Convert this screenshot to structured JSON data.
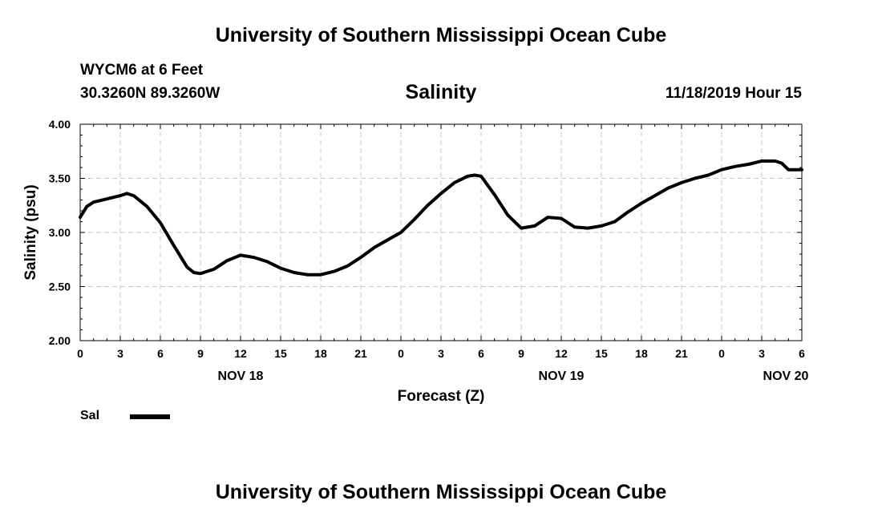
{
  "header": {
    "title_top": "University of Southern Mississippi Ocean Cube",
    "station": "WYCM6 at 6 Feet",
    "coords": "30.3260N 89.3260W",
    "parameter": "Salinity",
    "datetime": "11/18/2019 Hour 15"
  },
  "footer": {
    "title_bottom": "University of Southern Mississippi Ocean Cube"
  },
  "legend": {
    "label": "Sal",
    "color": "#000000"
  },
  "chart_data": {
    "type": "line",
    "title": "Salinity",
    "xlabel": "Forecast (Z)",
    "ylabel": "Salinity (psu)",
    "xlim": [
      0,
      54
    ],
    "ylim": [
      2.0,
      4.0
    ],
    "grid": true,
    "x_ticks": [
      {
        "x": 0,
        "label": "0"
      },
      {
        "x": 3,
        "label": "3"
      },
      {
        "x": 6,
        "label": "6"
      },
      {
        "x": 9,
        "label": "9"
      },
      {
        "x": 12,
        "label": "12"
      },
      {
        "x": 15,
        "label": "15"
      },
      {
        "x": 18,
        "label": "18"
      },
      {
        "x": 21,
        "label": "21"
      },
      {
        "x": 24,
        "label": "0"
      },
      {
        "x": 27,
        "label": "3"
      },
      {
        "x": 30,
        "label": "6"
      },
      {
        "x": 33,
        "label": "9"
      },
      {
        "x": 36,
        "label": "12"
      },
      {
        "x": 39,
        "label": "15"
      },
      {
        "x": 42,
        "label": "18"
      },
      {
        "x": 45,
        "label": "21"
      },
      {
        "x": 48,
        "label": "0"
      },
      {
        "x": 51,
        "label": "3"
      },
      {
        "x": 54,
        "label": "6"
      }
    ],
    "y_ticks": [
      {
        "y": 2.0,
        "label": "2.00"
      },
      {
        "y": 2.5,
        "label": "2.50"
      },
      {
        "y": 3.0,
        "label": "3.00"
      },
      {
        "y": 3.5,
        "label": "3.50"
      },
      {
        "y": 4.0,
        "label": "4.00"
      }
    ],
    "date_labels": [
      {
        "x": 12,
        "label": "NOV 18"
      },
      {
        "x": 36,
        "label": "NOV 19"
      },
      {
        "x": 52.8,
        "label": "NOV 20"
      }
    ],
    "series": [
      {
        "name": "Sal",
        "x": [
          0,
          0.5,
          1,
          2,
          3,
          3.5,
          4,
          5,
          6,
          7,
          8,
          8.5,
          9,
          10,
          11,
          12,
          13,
          14,
          15,
          16,
          17,
          18,
          19,
          20,
          21,
          22,
          23,
          24,
          25,
          26,
          27,
          28,
          29,
          29.5,
          30,
          31,
          32,
          33,
          34,
          35,
          36,
          37,
          38,
          39,
          40,
          41,
          42,
          43,
          44,
          45,
          46,
          47,
          48,
          49,
          50,
          51,
          52,
          52.5,
          53,
          54
        ],
        "values": [
          3.14,
          3.24,
          3.28,
          3.31,
          3.34,
          3.36,
          3.34,
          3.24,
          3.09,
          2.88,
          2.68,
          2.63,
          2.62,
          2.66,
          2.74,
          2.79,
          2.77,
          2.73,
          2.67,
          2.63,
          2.61,
          2.61,
          2.64,
          2.69,
          2.77,
          2.86,
          2.93,
          3.0,
          3.12,
          3.25,
          3.36,
          3.46,
          3.52,
          3.53,
          3.52,
          3.35,
          3.16,
          3.04,
          3.06,
          3.14,
          3.13,
          3.05,
          3.04,
          3.06,
          3.1,
          3.19,
          3.27,
          3.34,
          3.41,
          3.46,
          3.5,
          3.53,
          3.58,
          3.61,
          3.63,
          3.66,
          3.66,
          3.64,
          3.58,
          3.58
        ]
      }
    ]
  }
}
